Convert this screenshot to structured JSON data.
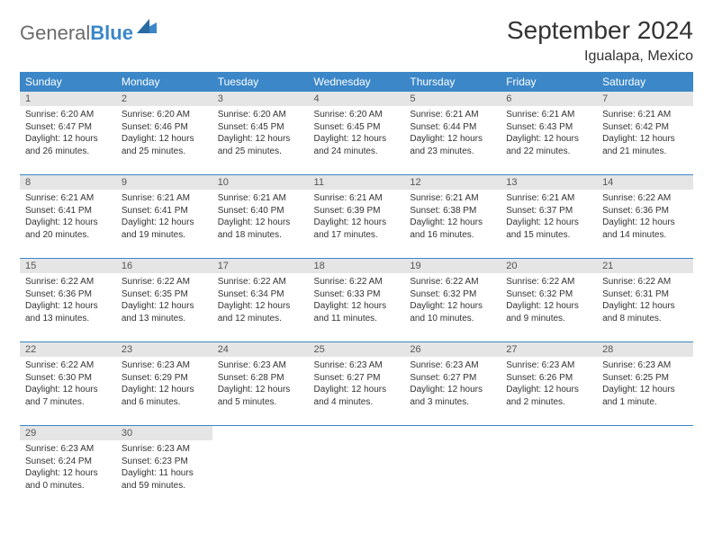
{
  "brand": {
    "part1": "General",
    "part2": "Blue"
  },
  "title": "September 2024",
  "location": "Igualapa, Mexico",
  "colors": {
    "header_bg": "#3b87c8",
    "header_fg": "#ffffff",
    "daynum_bg": "#e5e5e5",
    "row_border": "#3b87c8",
    "text": "#333333",
    "logo_gray": "#6b6b6b",
    "logo_blue": "#3b87c8"
  },
  "weekdays": [
    "Sunday",
    "Monday",
    "Tuesday",
    "Wednesday",
    "Thursday",
    "Friday",
    "Saturday"
  ],
  "days": [
    {
      "n": "1",
      "sr": "Sunrise: 6:20 AM",
      "ss": "Sunset: 6:47 PM",
      "d1": "Daylight: 12 hours",
      "d2": "and 26 minutes."
    },
    {
      "n": "2",
      "sr": "Sunrise: 6:20 AM",
      "ss": "Sunset: 6:46 PM",
      "d1": "Daylight: 12 hours",
      "d2": "and 25 minutes."
    },
    {
      "n": "3",
      "sr": "Sunrise: 6:20 AM",
      "ss": "Sunset: 6:45 PM",
      "d1": "Daylight: 12 hours",
      "d2": "and 25 minutes."
    },
    {
      "n": "4",
      "sr": "Sunrise: 6:20 AM",
      "ss": "Sunset: 6:45 PM",
      "d1": "Daylight: 12 hours",
      "d2": "and 24 minutes."
    },
    {
      "n": "5",
      "sr": "Sunrise: 6:21 AM",
      "ss": "Sunset: 6:44 PM",
      "d1": "Daylight: 12 hours",
      "d2": "and 23 minutes."
    },
    {
      "n": "6",
      "sr": "Sunrise: 6:21 AM",
      "ss": "Sunset: 6:43 PM",
      "d1": "Daylight: 12 hours",
      "d2": "and 22 minutes."
    },
    {
      "n": "7",
      "sr": "Sunrise: 6:21 AM",
      "ss": "Sunset: 6:42 PM",
      "d1": "Daylight: 12 hours",
      "d2": "and 21 minutes."
    },
    {
      "n": "8",
      "sr": "Sunrise: 6:21 AM",
      "ss": "Sunset: 6:41 PM",
      "d1": "Daylight: 12 hours",
      "d2": "and 20 minutes."
    },
    {
      "n": "9",
      "sr": "Sunrise: 6:21 AM",
      "ss": "Sunset: 6:41 PM",
      "d1": "Daylight: 12 hours",
      "d2": "and 19 minutes."
    },
    {
      "n": "10",
      "sr": "Sunrise: 6:21 AM",
      "ss": "Sunset: 6:40 PM",
      "d1": "Daylight: 12 hours",
      "d2": "and 18 minutes."
    },
    {
      "n": "11",
      "sr": "Sunrise: 6:21 AM",
      "ss": "Sunset: 6:39 PM",
      "d1": "Daylight: 12 hours",
      "d2": "and 17 minutes."
    },
    {
      "n": "12",
      "sr": "Sunrise: 6:21 AM",
      "ss": "Sunset: 6:38 PM",
      "d1": "Daylight: 12 hours",
      "d2": "and 16 minutes."
    },
    {
      "n": "13",
      "sr": "Sunrise: 6:21 AM",
      "ss": "Sunset: 6:37 PM",
      "d1": "Daylight: 12 hours",
      "d2": "and 15 minutes."
    },
    {
      "n": "14",
      "sr": "Sunrise: 6:22 AM",
      "ss": "Sunset: 6:36 PM",
      "d1": "Daylight: 12 hours",
      "d2": "and 14 minutes."
    },
    {
      "n": "15",
      "sr": "Sunrise: 6:22 AM",
      "ss": "Sunset: 6:36 PM",
      "d1": "Daylight: 12 hours",
      "d2": "and 13 minutes."
    },
    {
      "n": "16",
      "sr": "Sunrise: 6:22 AM",
      "ss": "Sunset: 6:35 PM",
      "d1": "Daylight: 12 hours",
      "d2": "and 13 minutes."
    },
    {
      "n": "17",
      "sr": "Sunrise: 6:22 AM",
      "ss": "Sunset: 6:34 PM",
      "d1": "Daylight: 12 hours",
      "d2": "and 12 minutes."
    },
    {
      "n": "18",
      "sr": "Sunrise: 6:22 AM",
      "ss": "Sunset: 6:33 PM",
      "d1": "Daylight: 12 hours",
      "d2": "and 11 minutes."
    },
    {
      "n": "19",
      "sr": "Sunrise: 6:22 AM",
      "ss": "Sunset: 6:32 PM",
      "d1": "Daylight: 12 hours",
      "d2": "and 10 minutes."
    },
    {
      "n": "20",
      "sr": "Sunrise: 6:22 AM",
      "ss": "Sunset: 6:32 PM",
      "d1": "Daylight: 12 hours",
      "d2": "and 9 minutes."
    },
    {
      "n": "21",
      "sr": "Sunrise: 6:22 AM",
      "ss": "Sunset: 6:31 PM",
      "d1": "Daylight: 12 hours",
      "d2": "and 8 minutes."
    },
    {
      "n": "22",
      "sr": "Sunrise: 6:22 AM",
      "ss": "Sunset: 6:30 PM",
      "d1": "Daylight: 12 hours",
      "d2": "and 7 minutes."
    },
    {
      "n": "23",
      "sr": "Sunrise: 6:23 AM",
      "ss": "Sunset: 6:29 PM",
      "d1": "Daylight: 12 hours",
      "d2": "and 6 minutes."
    },
    {
      "n": "24",
      "sr": "Sunrise: 6:23 AM",
      "ss": "Sunset: 6:28 PM",
      "d1": "Daylight: 12 hours",
      "d2": "and 5 minutes."
    },
    {
      "n": "25",
      "sr": "Sunrise: 6:23 AM",
      "ss": "Sunset: 6:27 PM",
      "d1": "Daylight: 12 hours",
      "d2": "and 4 minutes."
    },
    {
      "n": "26",
      "sr": "Sunrise: 6:23 AM",
      "ss": "Sunset: 6:27 PM",
      "d1": "Daylight: 12 hours",
      "d2": "and 3 minutes."
    },
    {
      "n": "27",
      "sr": "Sunrise: 6:23 AM",
      "ss": "Sunset: 6:26 PM",
      "d1": "Daylight: 12 hours",
      "d2": "and 2 minutes."
    },
    {
      "n": "28",
      "sr": "Sunrise: 6:23 AM",
      "ss": "Sunset: 6:25 PM",
      "d1": "Daylight: 12 hours",
      "d2": "and 1 minute."
    },
    {
      "n": "29",
      "sr": "Sunrise: 6:23 AM",
      "ss": "Sunset: 6:24 PM",
      "d1": "Daylight: 12 hours",
      "d2": "and 0 minutes."
    },
    {
      "n": "30",
      "sr": "Sunrise: 6:23 AM",
      "ss": "Sunset: 6:23 PM",
      "d1": "Daylight: 11 hours",
      "d2": "and 59 minutes."
    }
  ]
}
